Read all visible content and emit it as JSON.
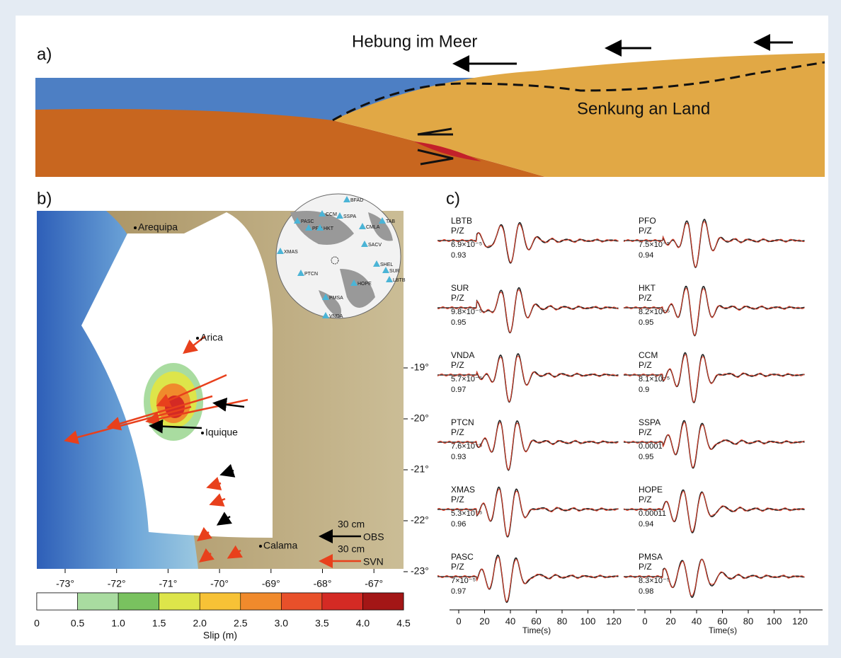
{
  "panel_a": {
    "label": "a)",
    "uplift": "Hebung im Meer",
    "subsidence": "Senkung an Land"
  },
  "panel_b": {
    "label": "b)",
    "cities": [
      {
        "name": "Arequipa",
        "x": 195,
        "y": 322
      },
      {
        "name": "Arica",
        "x": 283,
        "y": 478
      },
      {
        "name": "Iquique",
        "x": 290,
        "y": 612
      },
      {
        "name": "Calama",
        "x": 372,
        "y": 772
      }
    ],
    "lat_ticks": [
      "-19°",
      "-20°",
      "-21°",
      "-22°",
      "-23°"
    ],
    "lon_ticks": [
      "-73°",
      "-72°",
      "-71°",
      "-70°",
      "-69°",
      "-68°",
      "-67°"
    ],
    "scale_length": "30 cm",
    "obs": "OBS",
    "syn": "SVN",
    "colorbar": {
      "ticks": [
        "0",
        "0.5",
        "1.0",
        "1.5",
        "2.0",
        "2.5",
        "3.0",
        "3.5",
        "4.0",
        "4.5"
      ],
      "colors": [
        "#ffffff",
        "#a9dca0",
        "#79c25f",
        "#dde54a",
        "#f7c236",
        "#f08a2c",
        "#e8502a",
        "#d42a24",
        "#a31616"
      ],
      "title": "Slip (m)"
    },
    "inset_stations": [
      "BFAD",
      "PASC",
      "PFO",
      "CCM",
      "SSPA",
      "HKT",
      "CMLA",
      "TAB",
      "SACV",
      "XMAS",
      "PTCN",
      "HOPE",
      "SHEL",
      "SUR",
      "LBTB",
      "PMSA",
      "VNDA"
    ]
  },
  "panel_c": {
    "label": "c)",
    "component": "P/Z",
    "xlabel": "Time(s)",
    "time_ticks": [
      "0",
      "20",
      "40",
      "60",
      "80",
      "100",
      "120"
    ],
    "columns": [
      [
        {
          "station": "LBTB",
          "amplitude": "6.9×10⁻⁵",
          "cc": "0.93"
        },
        {
          "station": "SUR",
          "amplitude": "9.8×10⁻⁵",
          "cc": "0.95"
        },
        {
          "station": "VNDA",
          "amplitude": "5.7×10⁻⁵",
          "cc": "0.97"
        },
        {
          "station": "PTCN",
          "amplitude": "7.6×10⁻⁵",
          "cc": "0.93"
        },
        {
          "station": "XMAS",
          "amplitude": "5.3×10⁻⁵",
          "cc": "0.96"
        },
        {
          "station": "PASC",
          "amplitude": "7×10⁻⁵",
          "cc": "0.97"
        }
      ],
      [
        {
          "station": "PFO",
          "amplitude": "7.5×10⁻⁵",
          "cc": "0.94"
        },
        {
          "station": "HKT",
          "amplitude": "8.2×10⁻⁵",
          "cc": "0.95"
        },
        {
          "station": "CCM",
          "amplitude": "8.1×10⁻⁵",
          "cc": "0.9"
        },
        {
          "station": "SSPA",
          "amplitude": "0.0001",
          "cc": "0.95"
        },
        {
          "station": "HOPE",
          "amplitude": "0.00011",
          "cc": "0.94"
        },
        {
          "station": "PMSA",
          "amplitude": "8.3×10⁻⁵",
          "cc": "0.98"
        }
      ]
    ]
  }
}
